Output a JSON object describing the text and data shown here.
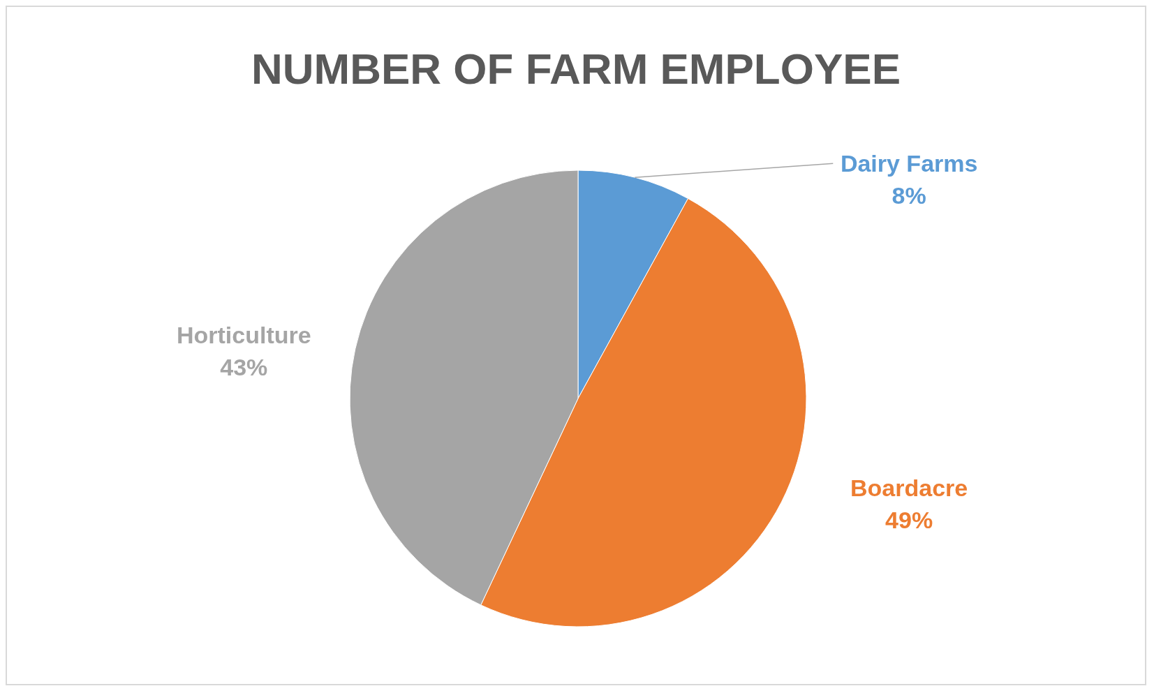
{
  "chart_data": {
    "type": "pie",
    "title": "NUMBER OF FARM EMPLOYEE",
    "categories": [
      "Dairy Farms",
      "Boardacre",
      "Horticulture"
    ],
    "values": [
      8,
      49,
      43
    ],
    "value_labels": [
      "8%",
      "49%",
      "43%"
    ],
    "colors": [
      "#5b9bd5",
      "#ed7d31",
      "#a5a5a5"
    ]
  }
}
